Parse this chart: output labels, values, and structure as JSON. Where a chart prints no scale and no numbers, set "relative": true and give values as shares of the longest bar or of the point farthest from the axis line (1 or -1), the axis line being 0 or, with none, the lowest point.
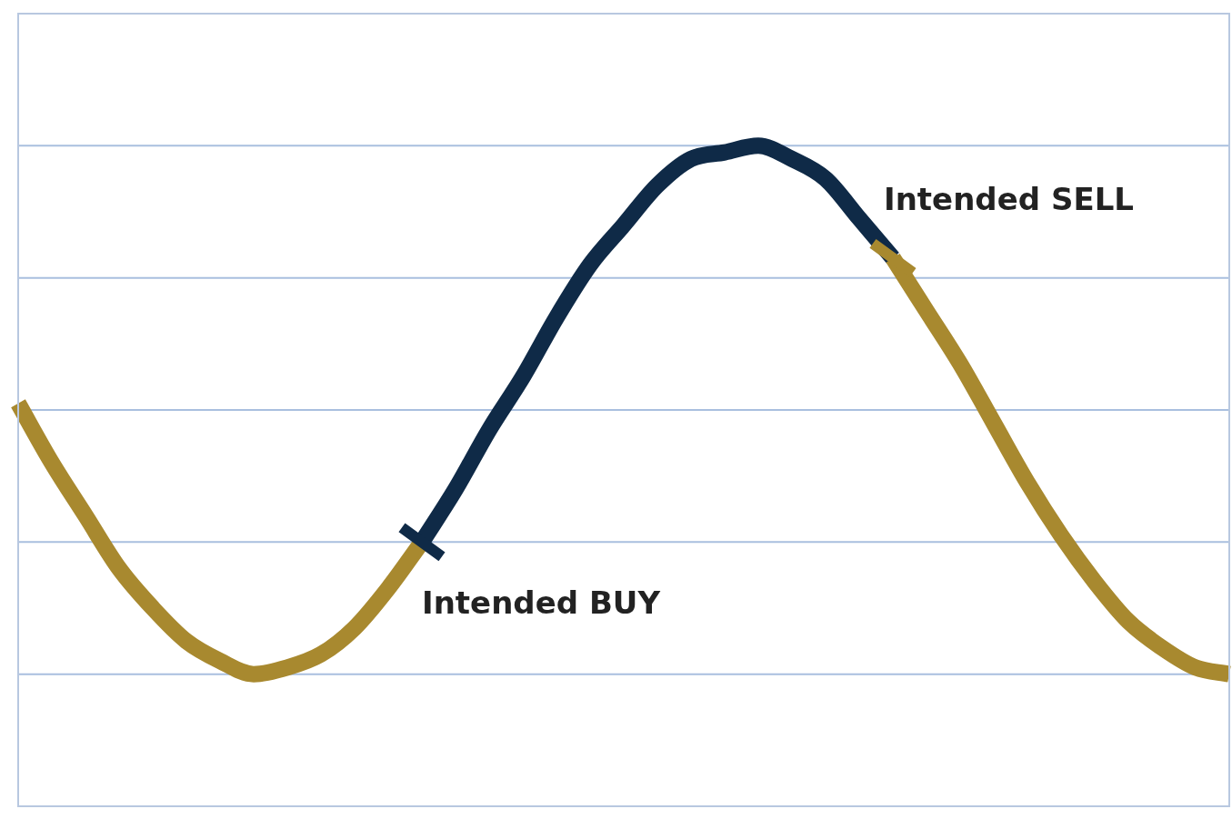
{
  "chart_data": {
    "type": "line",
    "relative": true,
    "grid": false,
    "ref_lines": [
      {
        "axis": "y",
        "value": 0.2,
        "color": "#a9bfdf"
      },
      {
        "axis": "y",
        "value": 0.4,
        "color": "#a9bfdf"
      },
      {
        "axis": "y",
        "value": 0.6,
        "color": "#a9bfdf"
      },
      {
        "axis": "y",
        "value": 0.8,
        "color": "#a9bfdf"
      },
      {
        "axis": "y",
        "value": 1,
        "color": "#a9bfdf"
      }
    ],
    "legend": false,
    "marker": "none",
    "line_style": "solid",
    "categories": [
      null,
      null,
      null,
      null,
      null,
      null,
      null,
      null,
      null,
      null,
      null,
      null,
      null,
      null,
      null,
      null,
      null,
      null,
      null,
      null,
      null,
      null,
      null,
      null,
      null,
      null,
      null,
      null,
      null,
      null,
      null,
      null,
      null,
      null,
      null,
      null,
      null
    ],
    "series": [
      {
        "color": "#a8892f",
        "values": [
          0.61,
          0.52,
          0.44,
          0.36,
          0.3,
          0.25,
          0.22,
          0.2,
          0.21,
          0.23,
          0.27,
          0.33,
          0.4,
          null,
          null,
          null,
          null,
          null,
          null,
          null,
          null,
          null,
          null,
          null,
          null,
          null,
          0.83,
          0.75,
          0.67,
          0.58,
          0.49,
          0.41,
          0.34,
          0.28,
          0.24,
          0.21,
          0.2
        ]
      },
      {
        "color": "#0f2a47",
        "values": [
          null,
          null,
          null,
          null,
          null,
          null,
          null,
          null,
          null,
          null,
          null,
          null,
          0.4,
          0.48,
          0.57,
          0.65,
          0.74,
          0.82,
          0.88,
          0.94,
          0.98,
          0.99,
          1,
          0.98,
          0.95,
          0.89,
          0.83,
          null,
          null,
          null,
          null,
          null,
          null,
          null,
          null,
          null,
          null
        ]
      }
    ],
    "annotations": [
      "Intended BUY",
      "Intended SELL"
    ]
  }
}
